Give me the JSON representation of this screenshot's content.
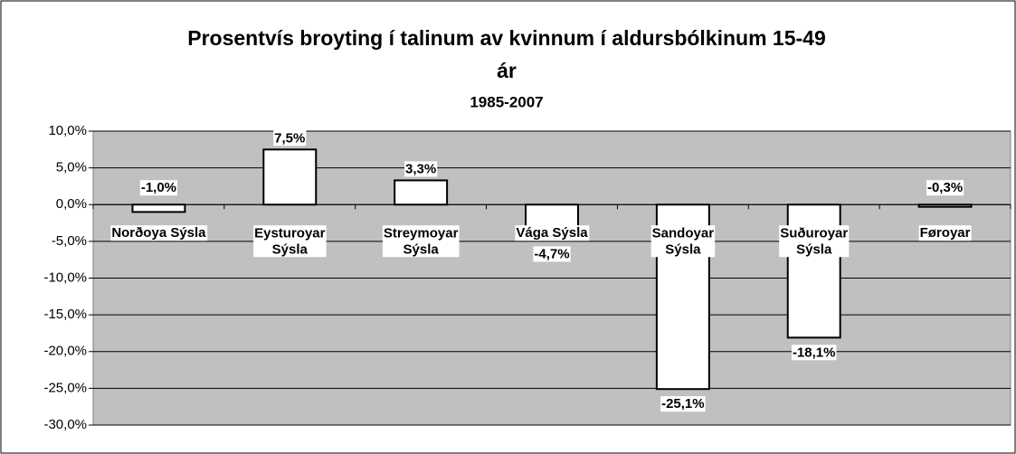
{
  "chart_data": {
    "type": "bar",
    "title": "Prosentvís broyting í talinum av kvinnum í aldursbólkinum 15-49 ár",
    "subtitle": "1985-2007",
    "categories": [
      "Norðoya Sýsla",
      "Eysturoyar Sýsla",
      "Streymoyar Sýsla",
      "Vága Sýsla",
      "Sandoyar Sýsla",
      "Suðuroyar Sýsla",
      "Føroyar"
    ],
    "values": [
      -1.0,
      7.5,
      3.3,
      -4.7,
      -25.1,
      -18.1,
      -0.3
    ],
    "value_labels": [
      "-1,0%",
      "7,5%",
      "3,3%",
      "-4,7%",
      "-25,1%",
      "-18,1%",
      "-0,3%"
    ],
    "color": "#ffffff",
    "ylim": [
      -30,
      10
    ],
    "yticks": [
      {
        "value": 10,
        "label": "10,0%"
      },
      {
        "value": 5,
        "label": "5,0%"
      },
      {
        "value": 0,
        "label": "0,0%"
      },
      {
        "value": -5,
        "label": "-5,0%"
      },
      {
        "value": -10,
        "label": "-10,0%"
      },
      {
        "value": -15,
        "label": "-15,0%"
      },
      {
        "value": -20,
        "label": "-20,0%"
      },
      {
        "value": -25,
        "label": "-25,0%"
      },
      {
        "value": -30,
        "label": "-30,0%"
      }
    ],
    "grid": true
  }
}
